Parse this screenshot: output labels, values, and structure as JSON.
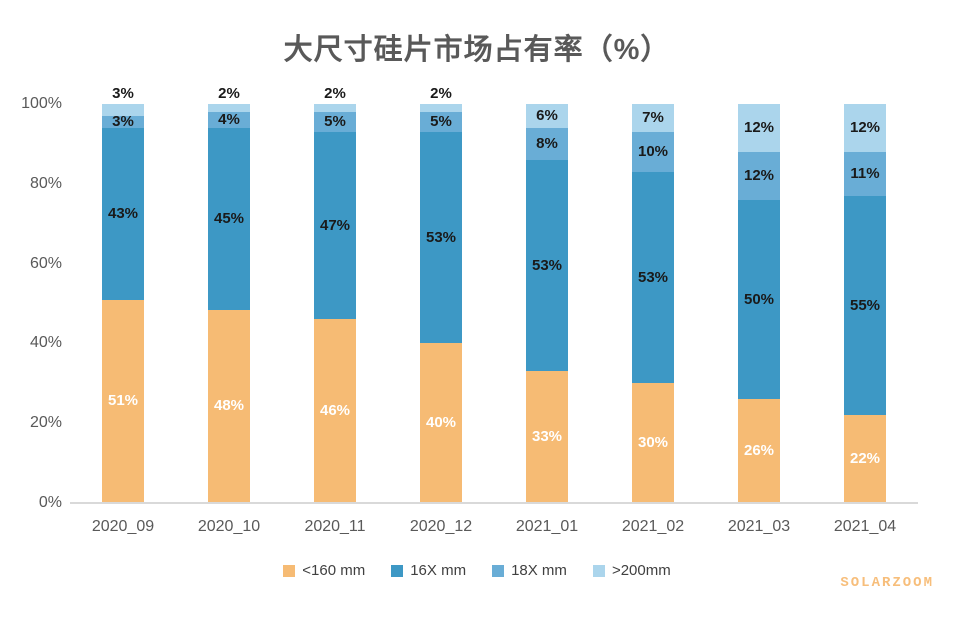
{
  "title": "大尺寸硅片市场占有率（%）",
  "watermark": "SOLARZOOM",
  "chart_data": {
    "type": "bar",
    "stacked": true,
    "title": "大尺寸硅片市场占有率（%）",
    "categories": [
      "2020_09",
      "2020_10",
      "2020_11",
      "2020_12",
      "2021_01",
      "2021_02",
      "2021_03",
      "2021_04"
    ],
    "series": [
      {
        "name": "<160 mm",
        "color": "#F6BB74",
        "label_color": "#FFFFFF",
        "values": [
          51,
          48,
          46,
          40,
          33,
          30,
          26,
          22
        ]
      },
      {
        "name": "16X mm",
        "color": "#3D98C5",
        "label_color": "#1A1A1A",
        "values": [
          43,
          45,
          47,
          53,
          53,
          53,
          50,
          55
        ]
      },
      {
        "name": "18X mm",
        "color": "#69ADD6",
        "label_color": "#1A1A1A",
        "values": [
          3,
          4,
          5,
          5,
          8,
          10,
          12,
          11
        ]
      },
      {
        "name": ">200mm",
        "color": "#ABD5EC",
        "label_color": "#1A1A1A",
        "values": [
          3,
          2,
          2,
          2,
          6,
          7,
          12,
          12
        ]
      }
    ],
    "yticks": [
      {
        "label": "0%",
        "value": 0
      },
      {
        "label": "20%",
        "value": 20
      },
      {
        "label": "40%",
        "value": 40
      },
      {
        "label": "60%",
        "value": 60
      },
      {
        "label": "80%",
        "value": 80
      },
      {
        "label": "100%",
        "value": 100
      }
    ],
    "ylim": [
      0,
      100
    ],
    "xlabel": "",
    "ylabel": "",
    "grid": false,
    "legend_position": "bottom",
    "data_label_format": "percent",
    "outside_label_threshold": 4
  }
}
